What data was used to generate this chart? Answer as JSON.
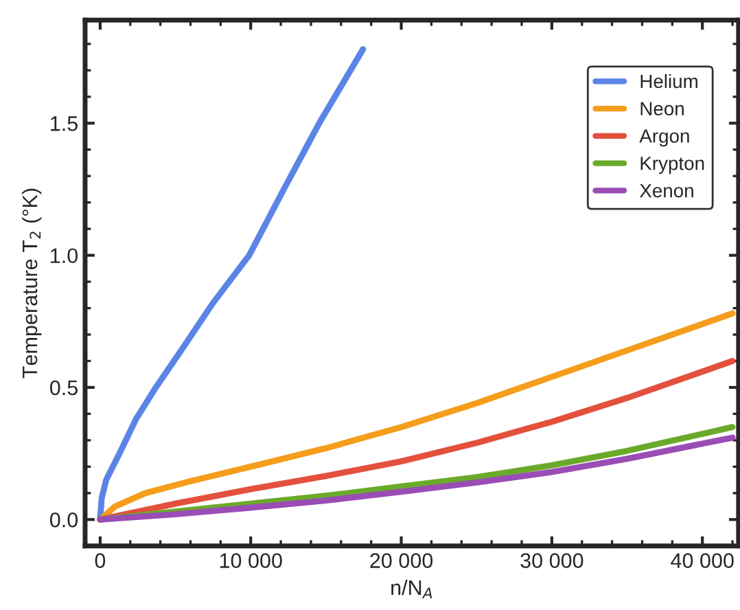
{
  "chart_data": {
    "type": "line",
    "xlabel": "n/N$_{A}$",
    "ylabel": "Temperature T$_{2}$ (°K)",
    "xlim": [
      -1000,
      42400
    ],
    "ylim": [
      -0.1,
      1.89
    ],
    "xticks": [
      0,
      {
        "value": 10000,
        "label": "10 000"
      },
      {
        "value": 20000,
        "label": "20 000"
      },
      {
        "value": 30000,
        "label": "30 000"
      },
      {
        "value": 40000,
        "label": "40 000"
      }
    ],
    "yticks": [
      {
        "value": 0,
        "label": "0.0"
      },
      0.5,
      {
        "value": 1,
        "label": "1.0"
      },
      1.5
    ],
    "grid": false,
    "legend": "top right",
    "line_style": "solid",
    "marker": "none",
    "series": [
      {
        "name": "Helium",
        "color": "#5b84e6",
        "x": [
          0,
          100,
          400,
          1280,
          2380,
          3700,
          5500,
          7500,
          9900,
          12200,
          14550,
          17460
        ],
        "values": [
          0,
          0.08,
          0.15,
          0.25,
          0.38,
          0.5,
          0.65,
          0.82,
          1.0,
          1.25,
          1.5,
          1.78
        ]
      },
      {
        "name": "Neon",
        "color": "#f59d1c",
        "x": [
          0,
          1000,
          3000,
          6000,
          10000,
          15000,
          20000,
          25000,
          30000,
          35000,
          42000
        ],
        "values": [
          0,
          0.05,
          0.1,
          0.145,
          0.2,
          0.27,
          0.35,
          0.44,
          0.54,
          0.64,
          0.78
        ]
      },
      {
        "name": "Argon",
        "color": "#e3503c",
        "x": [
          0,
          5000,
          10000,
          15000,
          20000,
          25000,
          30000,
          35000,
          42000
        ],
        "values": [
          0,
          0.06,
          0.115,
          0.165,
          0.22,
          0.29,
          0.37,
          0.46,
          0.6
        ]
      },
      {
        "name": "Krypton",
        "color": "#6aaa2a",
        "x": [
          0,
          5000,
          10000,
          15000,
          20000,
          25000,
          30000,
          35000,
          42000
        ],
        "values": [
          0,
          0.03,
          0.06,
          0.09,
          0.125,
          0.16,
          0.205,
          0.26,
          0.35
        ]
      },
      {
        "name": "Xenon",
        "color": "#9a4db5",
        "x": [
          0,
          5000,
          10000,
          15000,
          20000,
          25000,
          30000,
          35000,
          42000
        ],
        "values": [
          0,
          0.02,
          0.045,
          0.072,
          0.105,
          0.14,
          0.18,
          0.23,
          0.31
        ]
      }
    ]
  }
}
